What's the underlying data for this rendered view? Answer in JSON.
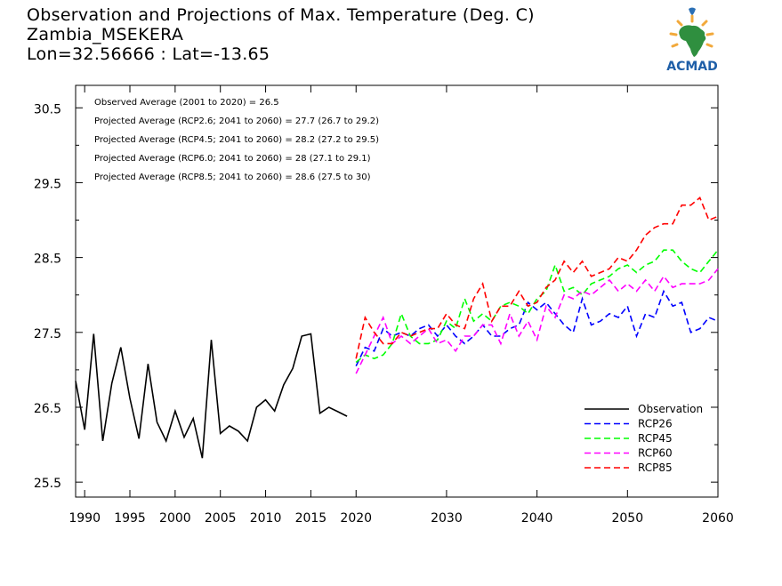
{
  "title": {
    "line1": "Observation and Projections of Max. Temperature (Deg. C)",
    "line2": "Zambia_MSEKERA",
    "line3": "Lon=32.56666 : Lat=-13.65"
  },
  "logo": {
    "text": "ACMAD",
    "icon": "africa-sun-logo-icon"
  },
  "annotations": [
    "Observed Average (2001 to 2020) = 26.5",
    "Projected Average (RCP2.6; 2041 to 2060) = 27.7 (26.7 to 29.2)",
    "Projected Average (RCP4.5; 2041 to 2060) = 28.2 (27.2 to 29.5)",
    "Projected Average (RCP6.0; 2041 to 2060) = 28 (27.1 to 29.1)",
    "Projected Average (RCP8.5; 2041 to 2060) = 28.6 (27.5 to 30)"
  ],
  "chart_data": {
    "type": "line",
    "xlim": [
      1989,
      2060
    ],
    "ylim": [
      25.3,
      30.8
    ],
    "grid": false,
    "legend_position": "bottom-right",
    "x_ticks": [
      {
        "value": 1990,
        "label": "1990"
      },
      {
        "value": 1995,
        "label": "1995"
      },
      {
        "value": 2000,
        "label": "2000"
      },
      {
        "value": 2005,
        "label": "2005"
      },
      {
        "value": 2010,
        "label": "2010"
      },
      {
        "value": 2015,
        "label": "2015"
      },
      {
        "value": 2020,
        "label": "2020"
      },
      {
        "value": 2030,
        "label": "2030"
      },
      {
        "value": 2040,
        "label": "2040"
      },
      {
        "value": 2050,
        "label": "2050"
      },
      {
        "value": 2060,
        "label": "2060"
      }
    ],
    "y_ticks": [
      {
        "value": 25.5,
        "label": "25.5"
      },
      {
        "value": 26.5,
        "label": "26.5"
      },
      {
        "value": 27.5,
        "label": "27.5"
      },
      {
        "value": 28.5,
        "label": "28.5"
      },
      {
        "value": 29.5,
        "label": "29.5"
      },
      {
        "value": 30.5,
        "label": "30.5"
      }
    ],
    "series": [
      {
        "name": "Observation",
        "color": "#000000",
        "dash": "solid",
        "x": [
          1989,
          1990,
          1991,
          1992,
          1993,
          1994,
          1995,
          1996,
          1997,
          1998,
          1999,
          2000,
          2001,
          2002,
          2003,
          2004,
          2005,
          2006,
          2007,
          2008,
          2009,
          2010,
          2011,
          2012,
          2013,
          2014,
          2015,
          2016,
          2017,
          2018,
          2019
        ],
        "y": [
          26.85,
          26.2,
          27.48,
          26.05,
          26.82,
          27.3,
          26.62,
          26.08,
          27.08,
          26.3,
          26.05,
          26.45,
          26.1,
          26.35,
          25.82,
          27.4,
          26.15,
          26.25,
          26.18,
          26.05,
          26.5,
          26.6,
          26.45,
          26.8,
          27.02,
          27.45,
          27.48,
          26.42,
          26.5,
          26.44,
          26.38
        ]
      },
      {
        "name": "RCP26",
        "color": "#0000ff",
        "dash": "dashed",
        "x": [
          2020,
          2021,
          2022,
          2023,
          2024,
          2025,
          2026,
          2027,
          2028,
          2029,
          2030,
          2031,
          2032,
          2033,
          2034,
          2035,
          2036,
          2037,
          2038,
          2039,
          2040,
          2041,
          2042,
          2043,
          2044,
          2045,
          2046,
          2047,
          2048,
          2049,
          2050,
          2051,
          2052,
          2053,
          2054,
          2055,
          2056,
          2057,
          2058,
          2059,
          2060
        ],
        "y": [
          27.05,
          27.3,
          27.25,
          27.55,
          27.45,
          27.5,
          27.45,
          27.55,
          27.6,
          27.45,
          27.6,
          27.45,
          27.35,
          27.45,
          27.6,
          27.45,
          27.45,
          27.55,
          27.6,
          27.9,
          27.8,
          27.9,
          27.75,
          27.6,
          27.5,
          27.95,
          27.6,
          27.65,
          27.75,
          27.7,
          27.85,
          27.45,
          27.75,
          27.7,
          28.05,
          27.85,
          27.9,
          27.5,
          27.55,
          27.7,
          27.65
        ]
      },
      {
        "name": "RCP45",
        "color": "#00ff00",
        "dash": "dashed",
        "x": [
          2020,
          2021,
          2022,
          2023,
          2024,
          2025,
          2026,
          2027,
          2028,
          2029,
          2030,
          2031,
          2032,
          2033,
          2034,
          2035,
          2036,
          2037,
          2038,
          2039,
          2040,
          2041,
          2042,
          2043,
          2044,
          2045,
          2046,
          2047,
          2048,
          2049,
          2050,
          2051,
          2052,
          2053,
          2054,
          2055,
          2056,
          2057,
          2058,
          2059,
          2060
        ],
        "y": [
          27.1,
          27.2,
          27.15,
          27.2,
          27.35,
          27.75,
          27.45,
          27.35,
          27.35,
          27.4,
          27.65,
          27.55,
          27.95,
          27.65,
          27.75,
          27.65,
          27.85,
          27.9,
          27.85,
          27.75,
          27.95,
          28.05,
          28.4,
          28.05,
          28.1,
          28.0,
          28.15,
          28.2,
          28.25,
          28.35,
          28.4,
          28.3,
          28.4,
          28.45,
          28.6,
          28.6,
          28.45,
          28.35,
          28.3,
          28.45,
          28.6
        ]
      },
      {
        "name": "RCP60",
        "color": "#ff00ff",
        "dash": "dashed",
        "x": [
          2020,
          2021,
          2022,
          2023,
          2024,
          2025,
          2026,
          2027,
          2028,
          2029,
          2030,
          2031,
          2032,
          2033,
          2034,
          2035,
          2036,
          2037,
          2038,
          2039,
          2040,
          2041,
          2042,
          2043,
          2044,
          2045,
          2046,
          2047,
          2048,
          2049,
          2050,
          2051,
          2052,
          2053,
          2054,
          2055,
          2056,
          2057,
          2058,
          2059,
          2060
        ],
        "y": [
          26.95,
          27.2,
          27.45,
          27.7,
          27.35,
          27.45,
          27.35,
          27.45,
          27.55,
          27.35,
          27.4,
          27.25,
          27.45,
          27.45,
          27.6,
          27.6,
          27.35,
          27.75,
          27.45,
          27.65,
          27.4,
          27.85,
          27.7,
          28.0,
          27.95,
          28.05,
          28.0,
          28.1,
          28.2,
          28.05,
          28.15,
          28.05,
          28.2,
          28.05,
          28.25,
          28.1,
          28.15,
          28.15,
          28.15,
          28.2,
          28.35
        ]
      },
      {
        "name": "RCP85",
        "color": "#ff0000",
        "dash": "dashed",
        "x": [
          2020,
          2021,
          2022,
          2023,
          2024,
          2025,
          2026,
          2027,
          2028,
          2029,
          2030,
          2031,
          2032,
          2033,
          2034,
          2035,
          2036,
          2037,
          2038,
          2039,
          2040,
          2041,
          2042,
          2043,
          2044,
          2045,
          2046,
          2047,
          2048,
          2049,
          2050,
          2051,
          2052,
          2053,
          2054,
          2055,
          2056,
          2057,
          2058,
          2059,
          2060
        ],
        "y": [
          27.15,
          27.7,
          27.5,
          27.35,
          27.35,
          27.5,
          27.45,
          27.5,
          27.55,
          27.55,
          27.75,
          27.6,
          27.55,
          27.95,
          28.15,
          27.65,
          27.85,
          27.85,
          28.05,
          27.85,
          27.9,
          28.1,
          28.2,
          28.45,
          28.3,
          28.45,
          28.25,
          28.3,
          28.35,
          28.5,
          28.45,
          28.6,
          28.8,
          28.9,
          28.95,
          28.95,
          29.2,
          29.2,
          29.3,
          29.0,
          29.05
        ]
      }
    ]
  }
}
